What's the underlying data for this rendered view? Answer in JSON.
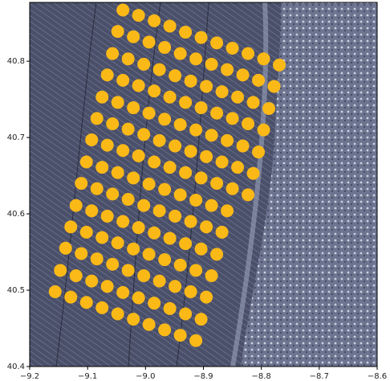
{
  "chart_data": {
    "type": "scatter",
    "x": [
      -9.039,
      -9.012,
      -8.985,
      -8.958,
      -8.931,
      -8.904,
      -8.877,
      -8.85,
      -8.823,
      -8.796,
      -8.769,
      -9.048,
      -9.021,
      -8.994,
      -8.967,
      -8.94,
      -8.913,
      -8.886,
      -8.859,
      -8.832,
      -8.805,
      -8.778,
      -9.057,
      -9.03,
      -9.003,
      -8.976,
      -8.949,
      -8.922,
      -8.895,
      -8.868,
      -8.841,
      -8.814,
      -8.787,
      -9.066,
      -9.039,
      -9.012,
      -8.985,
      -8.958,
      -8.931,
      -8.904,
      -8.877,
      -8.85,
      -8.823,
      -8.796,
      -9.075,
      -9.048,
      -9.021,
      -8.994,
      -8.967,
      -8.94,
      -8.913,
      -8.886,
      -8.859,
      -8.832,
      -8.805,
      -9.084,
      -9.057,
      -9.03,
      -9.003,
      -8.976,
      -8.949,
      -8.922,
      -8.895,
      -8.868,
      -8.841,
      -8.814,
      -9.093,
      -9.066,
      -9.039,
      -9.012,
      -8.985,
      -8.958,
      -8.931,
      -8.904,
      -8.877,
      -8.85,
      -8.823,
      -9.102,
      -9.075,
      -9.048,
      -9.021,
      -8.994,
      -8.967,
      -8.94,
      -8.913,
      -8.886,
      -8.859,
      -9.111,
      -9.084,
      -9.057,
      -9.03,
      -9.003,
      -8.976,
      -8.949,
      -8.922,
      -8.895,
      -8.868,
      -9.12,
      -9.093,
      -9.066,
      -9.039,
      -9.012,
      -8.985,
      -8.958,
      -8.931,
      -8.904,
      -8.877,
      -9.129,
      -9.102,
      -9.075,
      -9.048,
      -9.021,
      -8.994,
      -8.967,
      -8.94,
      -8.913,
      -8.886,
      -9.138,
      -9.111,
      -9.084,
      -9.057,
      -9.03,
      -9.003,
      -8.976,
      -8.949,
      -8.922,
      -8.895,
      -9.147,
      -9.12,
      -9.093,
      -9.066,
      -9.039,
      -9.012,
      -8.985,
      -8.958,
      -8.931,
      -8.904,
      -9.156,
      -9.129,
      -9.102,
      -9.075,
      -9.048,
      -9.021,
      -8.994,
      -8.967,
      -8.94,
      -8.913
    ],
    "values": [
      40.867,
      40.86,
      40.853,
      40.846,
      40.838,
      40.831,
      40.824,
      40.817,
      40.81,
      40.803,
      40.795,
      40.839,
      40.832,
      40.825,
      40.818,
      40.81,
      40.803,
      40.796,
      40.789,
      40.782,
      40.775,
      40.767,
      40.81,
      40.803,
      40.796,
      40.789,
      40.781,
      40.774,
      40.767,
      40.76,
      40.753,
      40.746,
      40.738,
      40.782,
      40.775,
      40.768,
      40.761,
      40.753,
      40.746,
      40.739,
      40.732,
      40.725,
      40.718,
      40.71,
      40.753,
      40.746,
      40.739,
      40.732,
      40.724,
      40.717,
      40.71,
      40.703,
      40.696,
      40.689,
      40.681,
      40.725,
      40.718,
      40.711,
      40.704,
      40.696,
      40.689,
      40.682,
      40.675,
      40.668,
      40.661,
      40.653,
      40.697,
      40.69,
      40.683,
      40.676,
      40.668,
      40.661,
      40.654,
      40.647,
      40.64,
      40.633,
      40.625,
      40.668,
      40.661,
      40.654,
      40.647,
      40.639,
      40.632,
      40.625,
      40.618,
      40.611,
      40.604,
      40.64,
      40.633,
      40.626,
      40.619,
      40.611,
      40.604,
      40.597,
      40.59,
      40.583,
      40.576,
      40.611,
      40.604,
      40.597,
      40.59,
      40.582,
      40.575,
      40.568,
      40.561,
      40.554,
      40.547,
      40.583,
      40.576,
      40.569,
      40.562,
      40.554,
      40.547,
      40.54,
      40.533,
      40.526,
      40.519,
      40.555,
      40.548,
      40.541,
      40.534,
      40.526,
      40.519,
      40.512,
      40.505,
      40.498,
      40.491,
      40.526,
      40.519,
      40.512,
      40.505,
      40.497,
      40.49,
      40.483,
      40.476,
      40.469,
      40.462,
      40.498,
      40.491,
      40.484,
      40.477,
      40.469,
      40.462,
      40.455,
      40.448,
      40.441,
      40.434
    ],
    "color": "#fbb917",
    "xlim": [
      -9.2,
      -8.6
    ],
    "ylim": [
      40.4,
      40.877
    ],
    "xticks": [
      {
        "value": -9.2,
        "label": "−9.2"
      },
      {
        "value": -9.1,
        "label": "−9.1"
      },
      {
        "value": -9.0,
        "label": "−9.0"
      },
      {
        "value": -8.9,
        "label": "−8.9"
      },
      {
        "value": -8.8,
        "label": "−8.8"
      },
      {
        "value": -8.7,
        "label": "−8.7"
      },
      {
        "value": -8.6,
        "label": "−8.6"
      }
    ],
    "yticks": [
      40.4,
      40.5,
      40.6,
      40.7,
      40.8
    ]
  }
}
